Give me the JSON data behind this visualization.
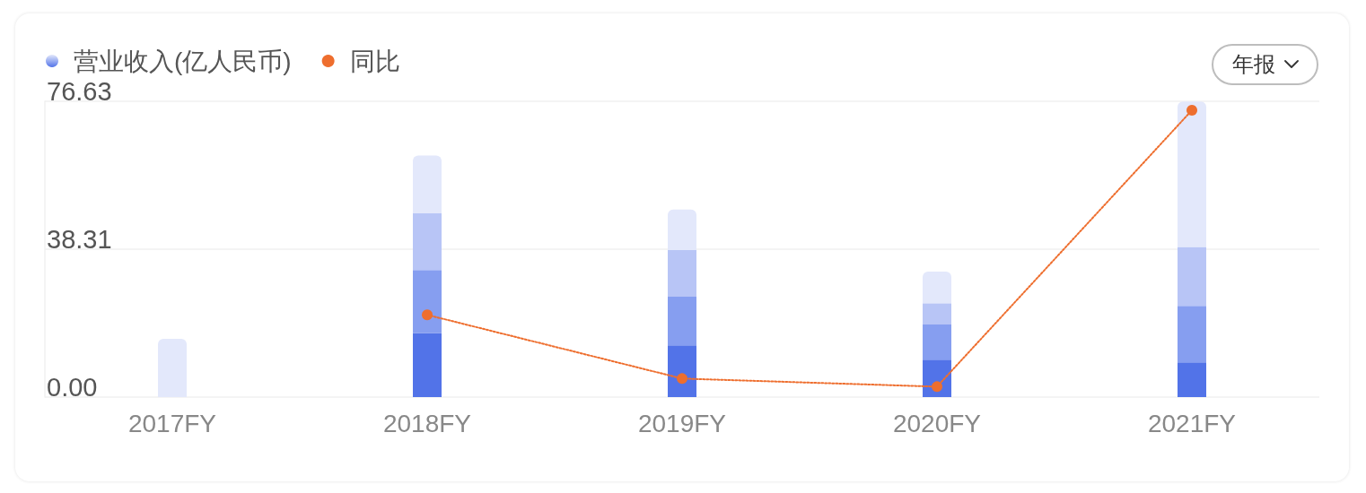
{
  "chart_data": {
    "type": "bar",
    "stacked": true,
    "categories": [
      "2017FY",
      "2018FY",
      "2019FY",
      "2020FY",
      "2021FY"
    ],
    "series": [
      {
        "name": "营业收入(亿人民币)",
        "color": "#5273e8",
        "values": [
          null,
          16.6,
          13.4,
          9.7,
          9.0
        ]
      },
      {
        "color": "#869ef0",
        "values": [
          null,
          16.3,
          12.6,
          9.1,
          14.6
        ]
      },
      {
        "color": "#b8c5f6",
        "values": [
          null,
          14.7,
          12.1,
          5.5,
          15.3
        ]
      },
      {
        "color": "#e3e8fb",
        "values": [
          15.1,
          15.0,
          10.5,
          8.2,
          37.7
        ]
      },
      {
        "type": "line",
        "name": "同比",
        "color": "#ee6e2e",
        "values": [
          null,
          21.3,
          4.8,
          2.7,
          74.3
        ]
      }
    ],
    "ylim": [
      0,
      76.63
    ],
    "yticks": [
      {
        "value": 0,
        "label": "0.00"
      },
      {
        "value": 38.31,
        "label": "38.31"
      },
      {
        "value": 76.63,
        "label": "76.63"
      }
    ],
    "grid": "y",
    "legend": "top left",
    "marker": "circle",
    "line_style": "dotted",
    "annotations": [
      "年报"
    ]
  }
}
